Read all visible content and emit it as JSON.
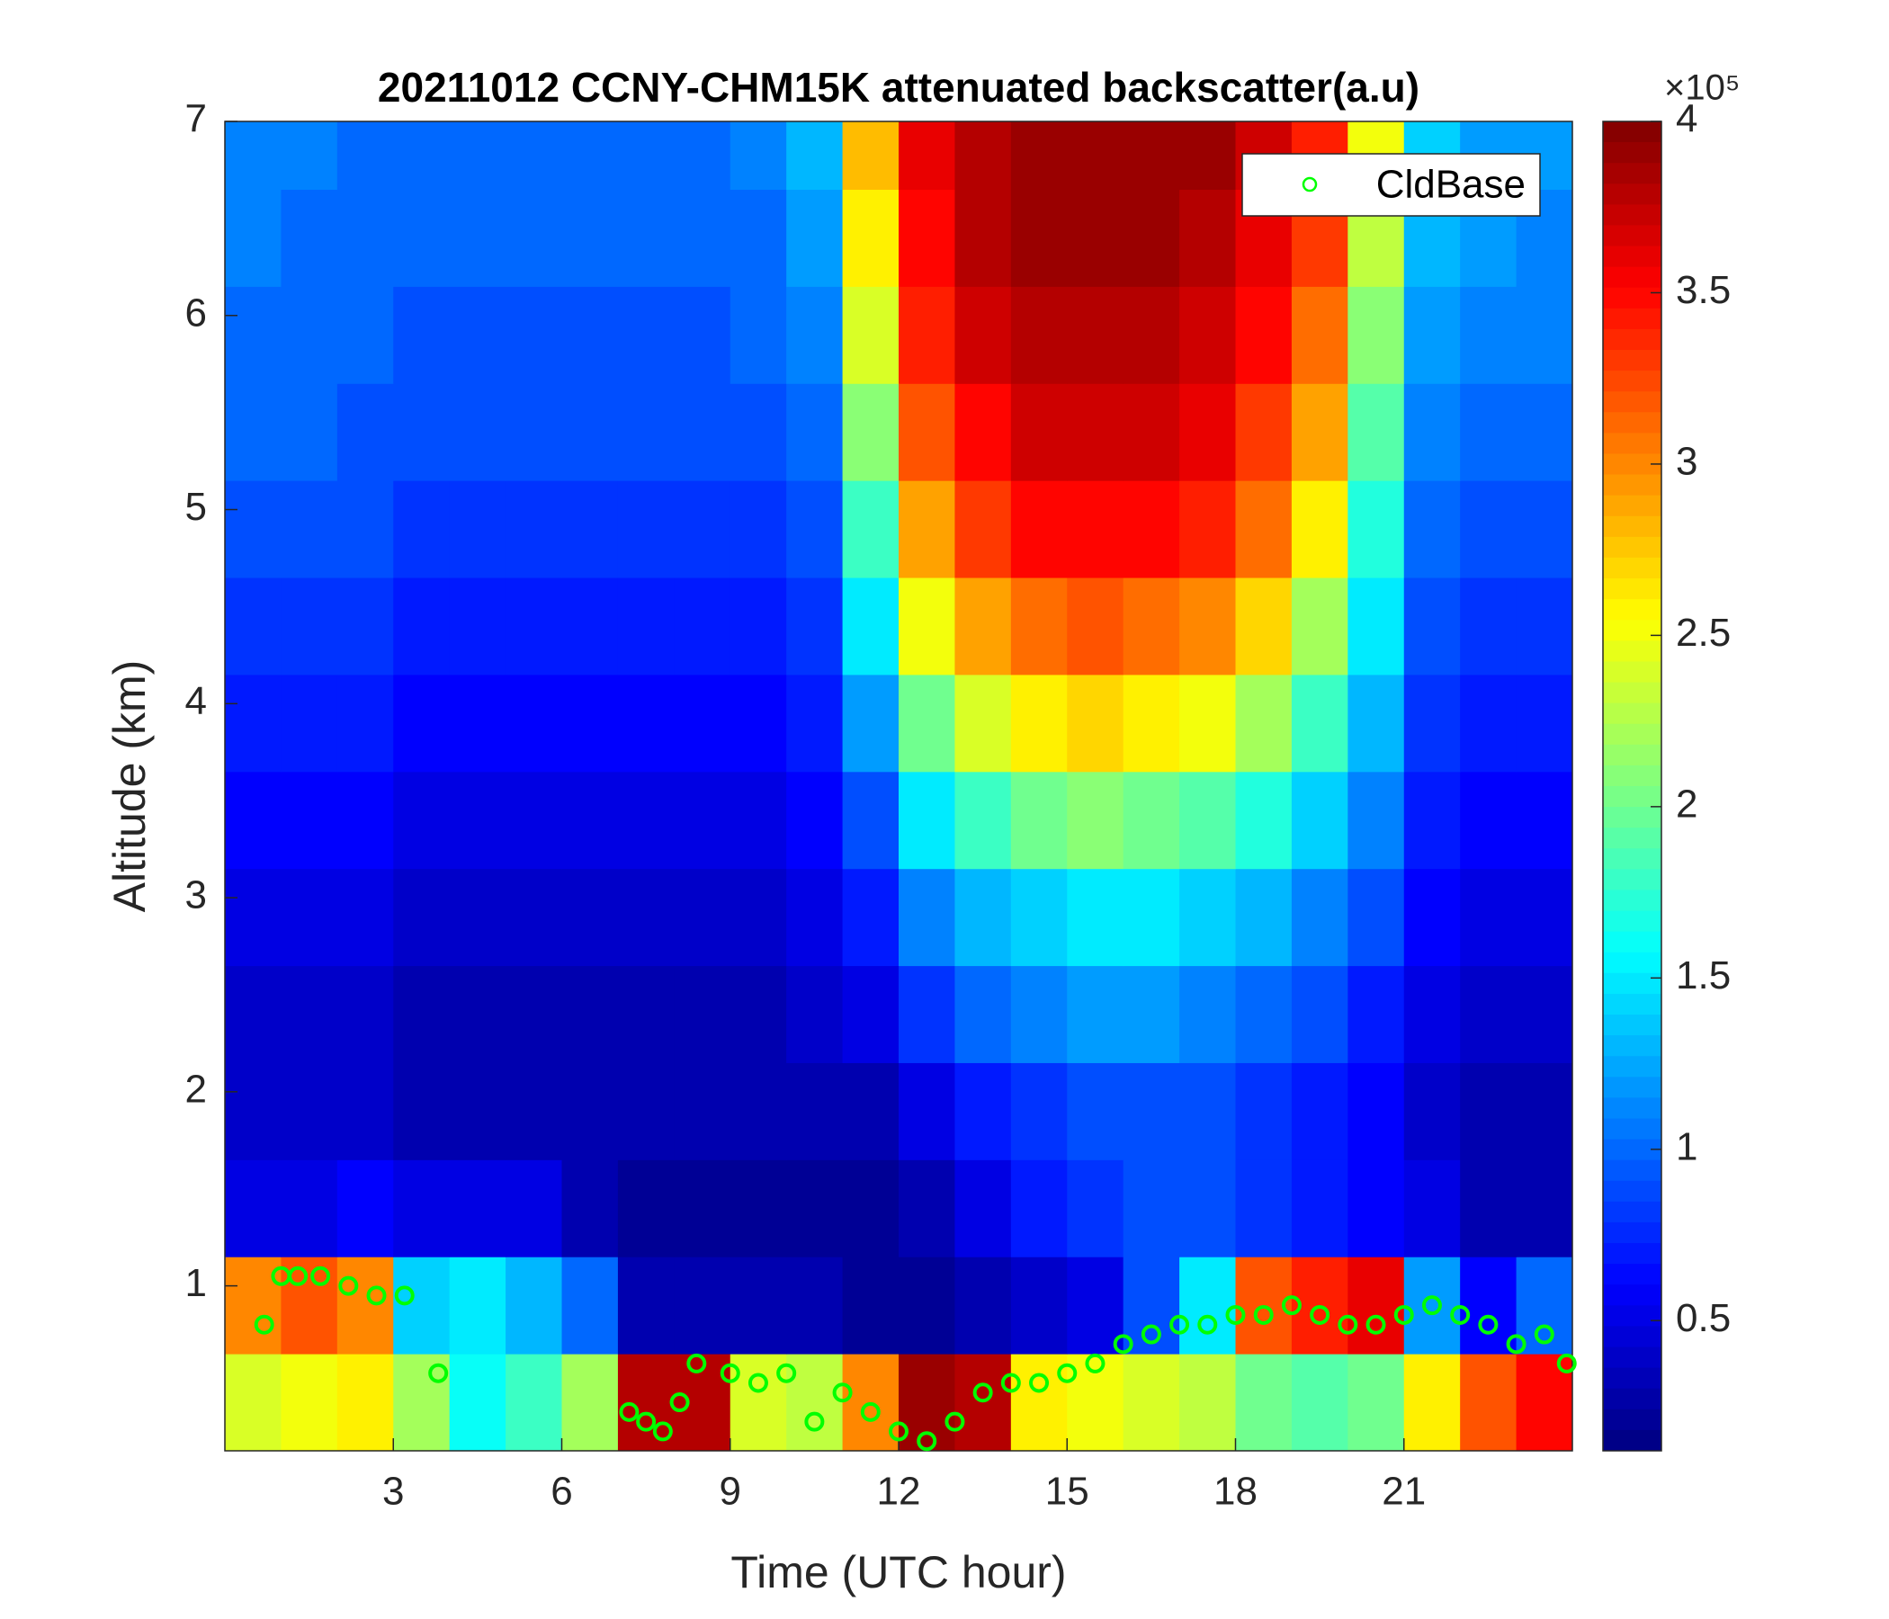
{
  "chart_data": {
    "type": "heatmap",
    "title": "20211012 CCNY-CHM15K attenuated backscatter(a.u)",
    "xlabel": "Time (UTC hour)",
    "ylabel": "Altitude (km)",
    "colormap": "jet",
    "colorbar_exponent": "×10⁵",
    "clim": [
      0.12,
      4
    ],
    "cticks": [
      0.5,
      1,
      1.5,
      2,
      2.5,
      3,
      3.5,
      4
    ],
    "xlim": [
      0,
      24
    ],
    "xticks": [
      3,
      6,
      9,
      12,
      15,
      18,
      21
    ],
    "ylim": [
      0.15,
      7
    ],
    "yticks": [
      1,
      2,
      3,
      4,
      5,
      6,
      7
    ],
    "x": [
      0.5,
      1.5,
      2.5,
      3.5,
      4.5,
      5.5,
      6.5,
      7.5,
      8.5,
      9.5,
      10.5,
      11.5,
      12.5,
      13.5,
      14.5,
      15.5,
      16.5,
      17.5,
      18.5,
      19.5,
      20.5,
      21.5,
      22.5,
      23.5
    ],
    "y": [
      0.4,
      0.9,
      1.4,
      1.9,
      2.4,
      2.9,
      3.4,
      3.9,
      4.4,
      4.9,
      5.4,
      5.9,
      6.4,
      6.9
    ],
    "values": [
      [
        2.4,
        2.5,
        2.6,
        2.2,
        1.6,
        1.8,
        2.2,
        3.8,
        3.8,
        2.4,
        2.3,
        3.0,
        3.9,
        3.8,
        2.6,
        2.5,
        2.4,
        2.3,
        2.0,
        1.9,
        2.0,
        2.6,
        3.2,
        3.5
      ],
      [
        3.0,
        3.2,
        3.0,
        1.4,
        1.5,
        1.3,
        1.0,
        0.3,
        0.3,
        0.3,
        0.3,
        0.2,
        0.2,
        0.3,
        0.4,
        0.5,
        0.9,
        1.5,
        3.2,
        3.4,
        3.6,
        1.2,
        0.6,
        1.0
      ],
      [
        0.5,
        0.5,
        0.6,
        0.5,
        0.5,
        0.5,
        0.3,
        0.2,
        0.2,
        0.2,
        0.2,
        0.2,
        0.3,
        0.5,
        0.7,
        0.8,
        0.9,
        0.9,
        0.8,
        0.7,
        0.6,
        0.5,
        0.3,
        0.3
      ],
      [
        0.4,
        0.4,
        0.4,
        0.3,
        0.3,
        0.3,
        0.3,
        0.3,
        0.3,
        0.3,
        0.3,
        0.3,
        0.5,
        0.7,
        0.8,
        0.9,
        0.9,
        0.9,
        0.8,
        0.7,
        0.6,
        0.4,
        0.3,
        0.3
      ],
      [
        0.4,
        0.4,
        0.4,
        0.3,
        0.3,
        0.3,
        0.3,
        0.3,
        0.3,
        0.3,
        0.4,
        0.5,
        0.8,
        1.0,
        1.1,
        1.2,
        1.2,
        1.1,
        1.0,
        0.9,
        0.7,
        0.5,
        0.4,
        0.4
      ],
      [
        0.5,
        0.5,
        0.5,
        0.4,
        0.4,
        0.4,
        0.4,
        0.4,
        0.4,
        0.4,
        0.5,
        0.7,
        1.1,
        1.3,
        1.4,
        1.5,
        1.5,
        1.4,
        1.3,
        1.1,
        0.9,
        0.6,
        0.5,
        0.5
      ],
      [
        0.6,
        0.6,
        0.6,
        0.5,
        0.5,
        0.5,
        0.5,
        0.5,
        0.5,
        0.5,
        0.6,
        0.9,
        1.5,
        1.8,
        2.0,
        2.1,
        2.0,
        1.9,
        1.7,
        1.4,
        1.1,
        0.7,
        0.6,
        0.6
      ],
      [
        0.7,
        0.7,
        0.7,
        0.6,
        0.6,
        0.6,
        0.6,
        0.6,
        0.6,
        0.6,
        0.7,
        1.2,
        2.0,
        2.4,
        2.6,
        2.7,
        2.6,
        2.5,
        2.2,
        1.8,
        1.3,
        0.8,
        0.7,
        0.7
      ],
      [
        0.8,
        0.8,
        0.8,
        0.7,
        0.7,
        0.7,
        0.7,
        0.7,
        0.7,
        0.7,
        0.8,
        1.5,
        2.5,
        2.9,
        3.1,
        3.2,
        3.1,
        3.0,
        2.7,
        2.2,
        1.5,
        0.9,
        0.8,
        0.8
      ],
      [
        0.9,
        0.9,
        0.9,
        0.8,
        0.8,
        0.8,
        0.8,
        0.8,
        0.8,
        0.8,
        0.9,
        1.8,
        2.9,
        3.3,
        3.5,
        3.5,
        3.5,
        3.4,
        3.1,
        2.6,
        1.7,
        1.0,
        0.9,
        0.9
      ],
      [
        1.0,
        1.0,
        0.9,
        0.9,
        0.9,
        0.9,
        0.9,
        0.9,
        0.9,
        0.9,
        1.0,
        2.1,
        3.2,
        3.5,
        3.7,
        3.7,
        3.7,
        3.6,
        3.3,
        2.9,
        1.9,
        1.1,
        1.0,
        1.0
      ],
      [
        1.0,
        1.0,
        1.0,
        0.9,
        0.9,
        0.9,
        0.9,
        0.9,
        0.9,
        1.0,
        1.1,
        2.4,
        3.4,
        3.7,
        3.8,
        3.8,
        3.8,
        3.7,
        3.5,
        3.1,
        2.1,
        1.2,
        1.1,
        1.1
      ],
      [
        1.1,
        1.0,
        1.0,
        1.0,
        1.0,
        1.0,
        1.0,
        1.0,
        1.0,
        1.0,
        1.2,
        2.6,
        3.5,
        3.8,
        3.9,
        3.9,
        3.9,
        3.8,
        3.6,
        3.3,
        2.3,
        1.3,
        1.2,
        1.1
      ],
      [
        1.1,
        1.1,
        1.0,
        1.0,
        1.0,
        1.0,
        1.0,
        1.0,
        1.0,
        1.1,
        1.3,
        2.8,
        3.6,
        3.8,
        3.9,
        3.9,
        3.9,
        3.9,
        3.7,
        3.4,
        2.5,
        1.4,
        1.2,
        1.2
      ]
    ],
    "legend": "top-right",
    "series": [
      {
        "name": "CldBase",
        "color": "#00ff00",
        "x": [
          0.7,
          1.0,
          1.3,
          1.7,
          2.2,
          2.7,
          3.2,
          3.8,
          7.2,
          7.5,
          7.8,
          8.1,
          8.4,
          9.0,
          9.5,
          10.0,
          10.5,
          11.0,
          11.5,
          12.0,
          12.5,
          13.0,
          13.5,
          14.0,
          14.5,
          15.0,
          15.5,
          16.0,
          16.5,
          17.0,
          17.5,
          18.0,
          18.5,
          19.0,
          19.5,
          20.0,
          20.5,
          21.0,
          21.5,
          22.0,
          22.5,
          23.0,
          23.5,
          23.9
        ],
        "values": [
          0.8,
          1.05,
          1.05,
          1.05,
          1.0,
          0.95,
          0.95,
          0.55,
          0.35,
          0.3,
          0.25,
          0.4,
          0.6,
          0.55,
          0.5,
          0.55,
          0.3,
          0.45,
          0.35,
          0.25,
          0.2,
          0.3,
          0.45,
          0.5,
          0.5,
          0.55,
          0.6,
          0.7,
          0.75,
          0.8,
          0.8,
          0.85,
          0.85,
          0.9,
          0.85,
          0.8,
          0.8,
          0.85,
          0.9,
          0.85,
          0.8,
          0.7,
          0.75,
          0.6
        ]
      }
    ]
  }
}
